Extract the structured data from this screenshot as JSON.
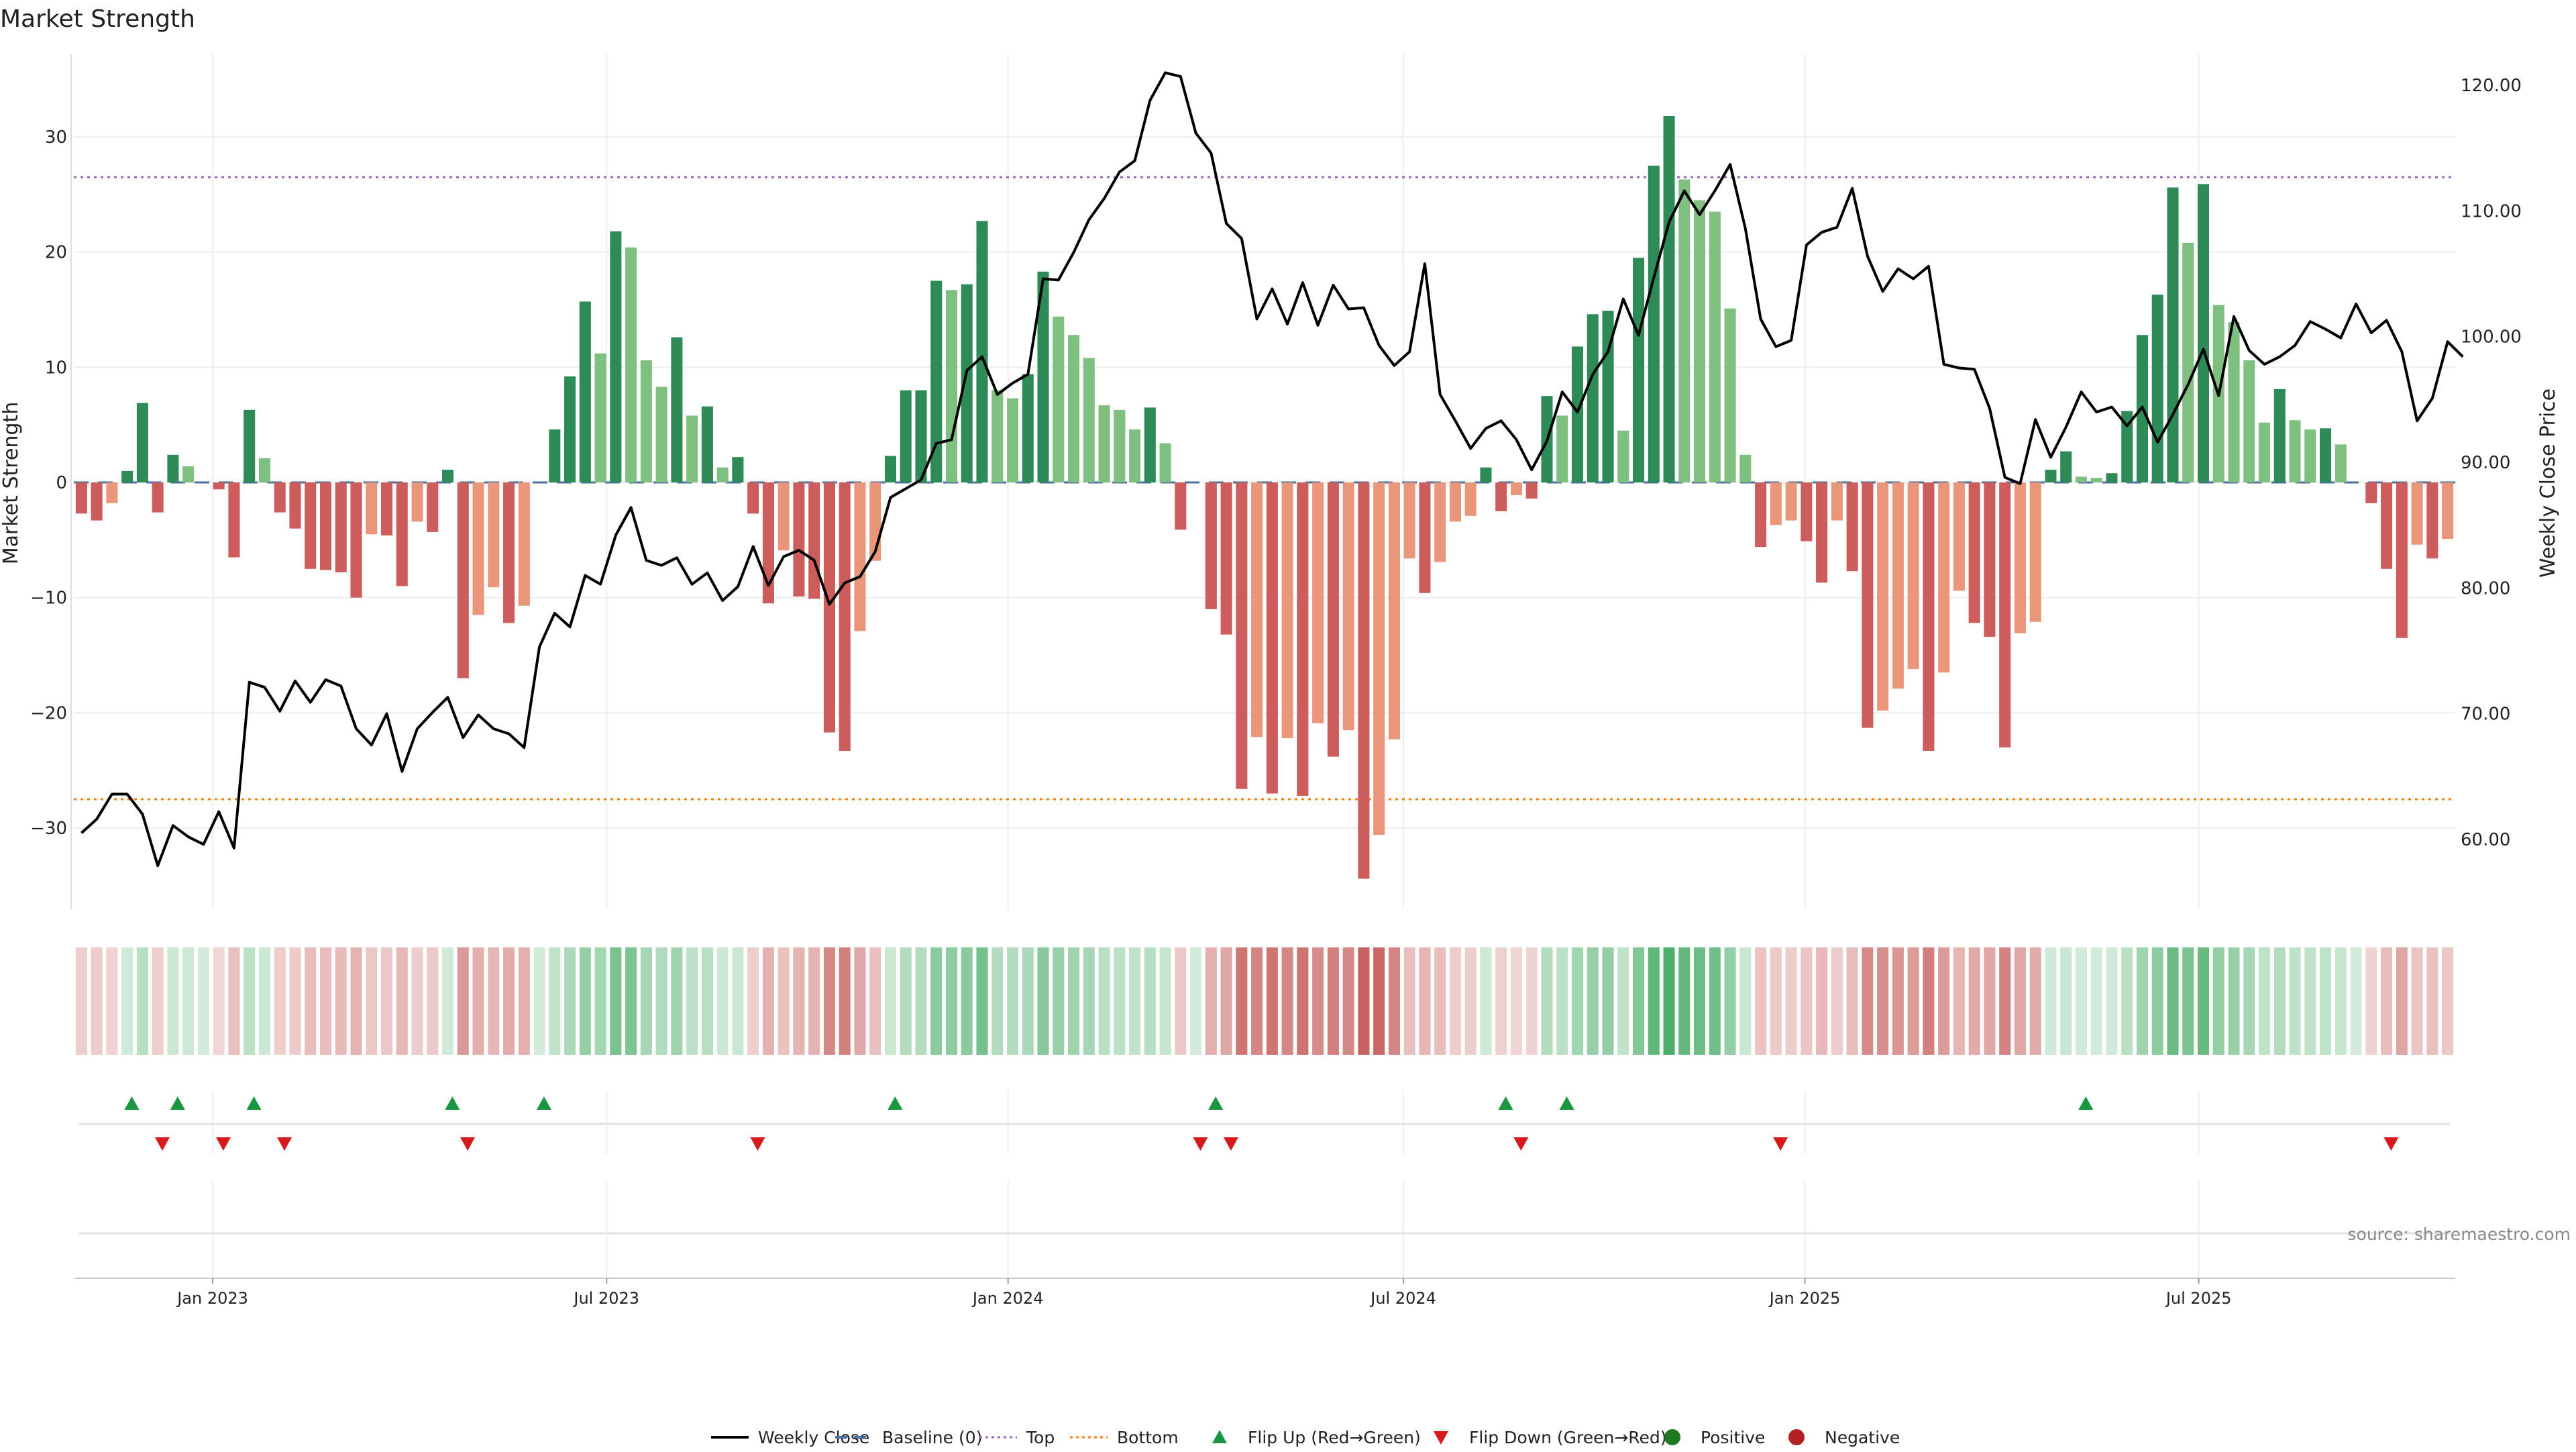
{
  "title": "Market Strength",
  "source_label": "source: sharemaestro.com",
  "chart_data": {
    "type": "bar",
    "title": "Market Strength",
    "ylabel_left": "Market Strength",
    "ylabel_right": "Weekly Close Price",
    "ylim_left": [
      -37,
      37
    ],
    "ylim_right": [
      54,
      123
    ],
    "yticks_left": [
      "30",
      "20",
      "10",
      "0",
      "−10",
      "−20",
      "−30"
    ],
    "yticks_left_values": [
      30,
      20,
      10,
      0,
      -10,
      -20,
      -30
    ],
    "yticks_right": [
      "120.00",
      "110.00",
      "100.00",
      "90.00",
      "80.00",
      "70.00",
      "60.00"
    ],
    "yticks_right_values": [
      120,
      110,
      100,
      90,
      80,
      70,
      60
    ],
    "x_tick_labels": [
      "Jan 2023",
      "Jul 2023",
      "Jan 2024",
      "Jul 2024",
      "Jan 2025",
      "Jul 2025"
    ],
    "x_tick_index": [
      8.6,
      34.4,
      60.7,
      86.6,
      112.9,
      138.7
    ],
    "top_line": 26.5,
    "bottom_line": -27.5,
    "grid": true,
    "legend_position": "bottom-center",
    "colors": {
      "strong_green": "#2e8b57",
      "light_green": "#7fbf7f",
      "strong_red": "#cd5c5c",
      "light_red": "#e9967a",
      "price_line": "#000000",
      "baseline": "#4a6fa5",
      "top": "#9467bd",
      "bottom": "#ff7f0e",
      "flip_up": "#1a9641",
      "flip_down": "#d7191c"
    },
    "strength": [
      -2.7,
      -3.3,
      -1.8,
      1.0,
      6.9,
      -2.6,
      2.4,
      1.4,
      0.0,
      -0.6,
      -6.5,
      6.3,
      2.1,
      -2.6,
      -4.0,
      -7.5,
      -7.6,
      -7.8,
      -10.0,
      -4.5,
      -4.6,
      -9.0,
      -3.4,
      -4.3,
      1.1,
      -17.0,
      -11.5,
      -9.1,
      -12.2,
      -10.7,
      0.0,
      4.6,
      9.2,
      15.7,
      11.2,
      21.8,
      20.4,
      10.6,
      8.3,
      12.6,
      5.8,
      6.6,
      1.3,
      2.2,
      -2.7,
      -10.5,
      -5.9,
      -9.9,
      -10.1,
      -21.7,
      -23.3,
      -12.9,
      -6.8,
      2.3,
      8.0,
      8.0,
      17.5,
      16.7,
      17.2,
      22.7,
      8.0,
      7.3,
      9.4,
      18.3,
      14.4,
      12.8,
      10.8,
      6.7,
      6.3,
      4.6,
      6.5,
      3.4,
      -4.1,
      0.0,
      -11.0,
      -13.2,
      -26.6,
      -22.1,
      -27.0,
      -22.2,
      -27.2,
      -20.9,
      -23.8,
      -21.5,
      -34.4,
      -30.6,
      -22.3,
      -6.6,
      -9.6,
      -6.9,
      -3.4,
      -2.9,
      1.3,
      -2.5,
      -1.1,
      -1.4,
      7.5,
      5.8,
      11.8,
      14.6,
      14.9,
      4.5,
      19.5,
      27.5,
      31.8,
      26.3,
      24.5,
      23.5,
      15.1,
      2.4,
      -5.6,
      -3.7,
      -3.3,
      -5.1,
      -8.7,
      -3.3,
      -7.7,
      -21.3,
      -19.8,
      -17.9,
      -16.2,
      -23.3,
      -16.5,
      -9.4,
      -12.2,
      -13.4,
      -23.0,
      -13.1,
      -12.1,
      1.1,
      2.7,
      0.5,
      0.4,
      0.8,
      6.2,
      12.8,
      16.3,
      25.6,
      20.8,
      25.9,
      15.4,
      13.9,
      10.6,
      5.2,
      8.1,
      5.4,
      4.6,
      4.7,
      3.3,
      0.0,
      -1.8,
      -7.5,
      -13.5,
      -5.4,
      -6.6,
      -4.9
    ],
    "weekly_close": [
      60.5,
      61.6,
      63.6,
      63.6,
      62.0,
      57.9,
      61.1,
      60.2,
      59.6,
      62.2,
      59.3,
      72.5,
      72.1,
      70.2,
      72.6,
      70.9,
      72.7,
      72.2,
      68.8,
      67.5,
      70.0,
      65.4,
      68.8,
      70.1,
      71.3,
      68.1,
      69.9,
      68.8,
      68.4,
      67.3,
      75.3,
      78.0,
      76.9,
      81.0,
      80.3,
      84.2,
      86.4,
      82.2,
      81.8,
      82.4,
      80.3,
      81.2,
      79.0,
      80.1,
      83.3,
      80.2,
      82.5,
      83.0,
      82.2,
      78.7,
      80.4,
      80.9,
      82.9,
      87.2,
      87.9,
      88.6,
      91.5,
      91.8,
      97.3,
      98.4,
      95.4,
      96.3,
      97.0,
      104.6,
      104.5,
      106.7,
      109.3,
      111.0,
      113.1,
      114.0,
      118.8,
      121.0,
      120.7,
      116.2,
      114.6,
      109.0,
      107.8,
      101.4,
      103.8,
      101.0,
      104.3,
      100.9,
      104.1,
      102.2,
      102.3,
      99.3,
      97.7,
      98.8,
      105.8,
      95.4,
      93.3,
      91.1,
      92.7,
      93.3,
      91.8,
      89.4,
      91.7,
      95.6,
      94.0,
      97.0,
      98.8,
      103.0,
      100.1,
      104.7,
      109.1,
      111.6,
      109.7,
      111.6,
      113.7,
      108.6,
      101.4,
      99.2,
      99.7,
      107.3,
      108.3,
      108.7,
      111.8,
      106.4,
      103.6,
      105.4,
      104.6,
      105.6,
      97.8,
      97.5,
      97.4,
      94.3,
      88.8,
      88.3,
      93.4,
      90.4,
      92.8,
      95.6,
      94.0,
      94.4,
      92.9,
      94.4,
      91.6,
      93.8,
      96.2,
      99.0,
      95.3,
      101.6,
      98.9,
      97.8,
      98.4,
      99.3,
      101.2,
      100.6,
      99.9,
      102.6,
      100.3,
      101.3,
      98.8,
      93.3,
      95.1,
      99.6,
      98.4
    ],
    "flip_up_index": [
      3.3,
      6.3,
      11.3,
      24.3,
      30.3,
      53.3,
      74.3,
      93.3,
      97.3,
      131.3
    ],
    "flip_down_index": [
      5.3,
      9.3,
      13.3,
      25.3,
      44.3,
      73.3,
      75.3,
      94.3,
      111.3,
      151.3
    ],
    "legend": [
      {
        "label": "Weekly Close",
        "kind": "line-solid"
      },
      {
        "label": "Baseline (0)",
        "kind": "line-dash"
      },
      {
        "label": "Top",
        "kind": "line-dot-purple"
      },
      {
        "label": "Bottom",
        "kind": "line-dot-orange"
      },
      {
        "label": "Flip Up (Red→Green)",
        "kind": "tri-up"
      },
      {
        "label": "Flip Down (Green→Red)",
        "kind": "tri-down"
      },
      {
        "label": "Positive",
        "kind": "dot-green"
      },
      {
        "label": "Negative",
        "kind": "dot-red"
      }
    ]
  }
}
